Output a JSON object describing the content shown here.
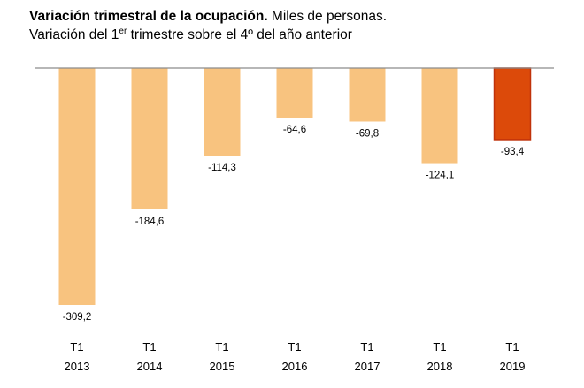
{
  "title": {
    "bold": "Variación trimestral de la ocupación.",
    "rest": " Miles de personas.",
    "subtitle_prefix": "Variación del 1",
    "subtitle_sup": "er",
    "subtitle_suffix": " trimestre sobre el 4º del año anterior"
  },
  "chart_data": {
    "type": "bar",
    "categories": [
      "T1 2013",
      "T1 2014",
      "T1 2015",
      "T1 2016",
      "T1 2017",
      "T1 2018",
      "T1 2019"
    ],
    "category_lines": [
      [
        "T1",
        "2013"
      ],
      [
        "T1",
        "2014"
      ],
      [
        "T1",
        "2015"
      ],
      [
        "T1",
        "2016"
      ],
      [
        "T1",
        "2017"
      ],
      [
        "T1",
        "2018"
      ],
      [
        "T1",
        "2019"
      ]
    ],
    "values": [
      -309.2,
      -184.6,
      -114.3,
      -64.6,
      -69.8,
      -124.1,
      -93.4
    ],
    "value_labels": [
      "-309,2",
      "-184,6",
      "-114,3",
      "-64,6",
      "-69,8",
      "-124,1",
      "-93,4"
    ],
    "highlight_index": 6,
    "colors": {
      "default": "#f8c37f",
      "highlight": "#dc4a0a",
      "highlight_border": "#c0320a",
      "axis": "#8c8c8c"
    },
    "xlabel": "",
    "ylabel": "",
    "ylim": [
      -309.2,
      0
    ],
    "grid": false,
    "legend": "none"
  }
}
